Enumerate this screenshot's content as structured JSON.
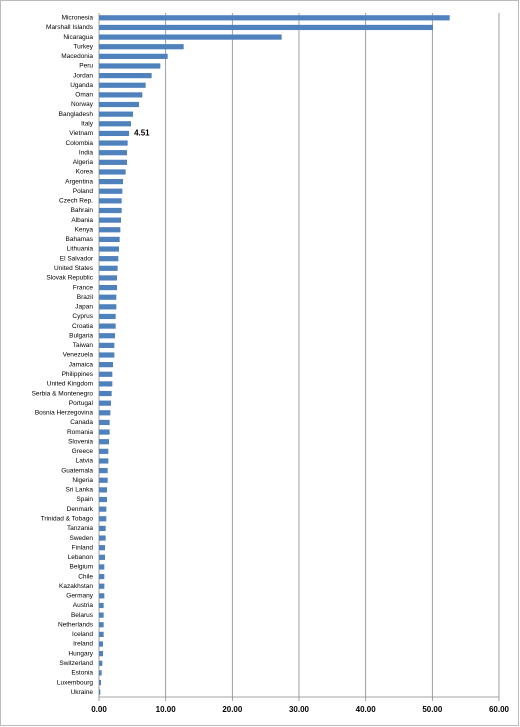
{
  "chart_data": {
    "type": "bar",
    "orientation": "horizontal",
    "color": "#4f81bd",
    "grid": true,
    "categories": [
      "Micronesia",
      "Marshall Islands",
      "Nicaragua",
      "Turkey",
      "Macedonia",
      "Peru",
      "Jordan",
      "Uganda",
      "Oman",
      "Norway",
      "Bangladesh",
      "Italy",
      "Vietnam",
      "Colombia",
      "India",
      "Algeria",
      "Korea",
      "Argentina",
      "Poland",
      "Czech Rep.",
      "Bahrain",
      "Albania",
      "Kenya",
      "Bahamas",
      "Lithuania",
      "El Salvador",
      "United States",
      "Slovak Republic",
      "France",
      "Brazil",
      "Japan",
      "Cyprus",
      "Croatia",
      "Bulgaria",
      "Taiwan",
      "Venezuela",
      "Jamaica",
      "Philippines",
      "United Kingdom",
      "Serbia & Montenegro",
      "Portugal",
      "Bosnia Herzegovina",
      "Canada",
      "Romania",
      "Slovenia",
      "Greece",
      "Latvia",
      "Guatemala",
      "Nigeria",
      "Sri Lanka",
      "Spain",
      "Denmark",
      "Trinidad & Tobago",
      "Tanzania",
      "Sweden",
      "Finland",
      "Lebanon",
      "Belgium",
      "Chile",
      "Kazakhstan",
      "Germany",
      "Austria",
      "Belarus",
      "Netherlands",
      "Iceland",
      "Ireland",
      "Hungary",
      "Switzerland",
      "Estonia",
      "Luxembourg",
      "Ukraine"
    ],
    "values": [
      52.6,
      50.1,
      27.4,
      12.7,
      10.3,
      9.2,
      7.9,
      7.0,
      6.5,
      6.0,
      5.1,
      4.8,
      4.51,
      4.3,
      4.2,
      4.2,
      4.0,
      3.6,
      3.5,
      3.4,
      3.4,
      3.3,
      3.2,
      3.1,
      3.0,
      2.9,
      2.8,
      2.7,
      2.7,
      2.6,
      2.6,
      2.5,
      2.5,
      2.4,
      2.3,
      2.3,
      2.1,
      2.0,
      2.0,
      1.9,
      1.8,
      1.7,
      1.6,
      1.6,
      1.5,
      1.4,
      1.4,
      1.3,
      1.3,
      1.2,
      1.2,
      1.1,
      1.1,
      1.0,
      1.0,
      0.9,
      0.9,
      0.8,
      0.8,
      0.8,
      0.8,
      0.7,
      0.7,
      0.7,
      0.7,
      0.6,
      0.6,
      0.5,
      0.4,
      0.3,
      0.2
    ],
    "value_labels": [
      null,
      null,
      null,
      null,
      null,
      null,
      null,
      null,
      null,
      null,
      null,
      null,
      "4.51",
      null,
      null,
      null,
      null,
      null,
      null,
      null,
      null,
      null,
      null,
      null,
      null,
      null,
      null,
      null,
      null,
      null,
      null,
      null,
      null,
      null,
      null,
      null,
      null,
      null,
      null,
      null,
      null,
      null,
      null,
      null,
      null,
      null,
      null,
      null,
      null,
      null,
      null,
      null,
      null,
      null,
      null,
      null,
      null,
      null,
      null,
      null,
      null,
      null,
      null,
      null,
      null,
      null,
      null,
      null,
      null,
      null,
      null
    ],
    "xlim": [
      0,
      60
    ],
    "xticks": [
      {
        "value": 0,
        "label": "0.00"
      },
      {
        "value": 10,
        "label": "10.00"
      },
      {
        "value": 20,
        "label": "20.00"
      },
      {
        "value": 30,
        "label": "30.00"
      },
      {
        "value": 40,
        "label": "40.00"
      },
      {
        "value": 50,
        "label": "50.00"
      },
      {
        "value": 60,
        "label": "60.00"
      }
    ]
  }
}
